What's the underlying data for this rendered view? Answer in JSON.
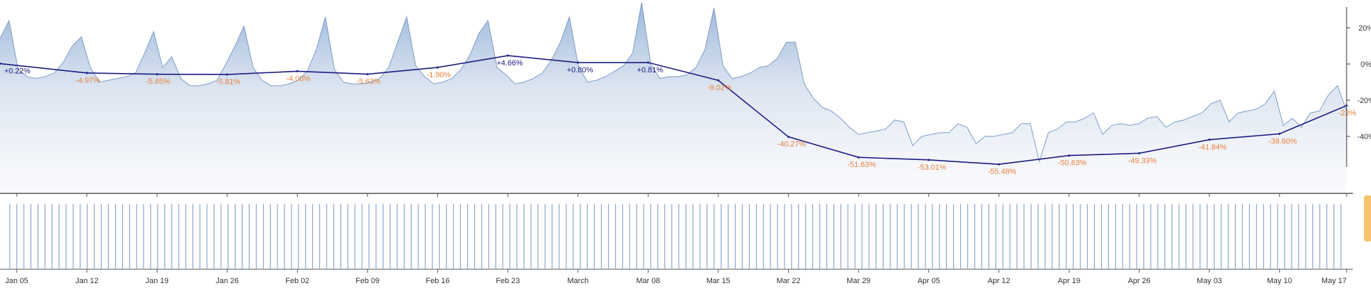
{
  "chart_data": {
    "type": "line",
    "x_tick_labels": [
      "Jan 05",
      "Jan 12",
      "Jan 19",
      "Jan 26",
      "Feb 02",
      "Feb 09",
      "Feb 16",
      "Feb 23",
      "March",
      "Mar 08",
      "Mar 15",
      "Mar 22",
      "Mar 29",
      "Apr 05",
      "Apr 12",
      "Apr 19",
      "Apr 26",
      "May 03",
      "May 10",
      "May 17"
    ],
    "y_tick_labels": [
      "20%",
      "0%",
      "-20%",
      "-40%"
    ],
    "ylim": [
      -56,
      35
    ],
    "weekly_series": {
      "values": [
        0.22,
        -4.97,
        -5.65,
        -5.81,
        -4.0,
        -5.63,
        -1.9,
        4.66,
        0.8,
        0.81,
        -9.02,
        -40.27,
        -51.63,
        -53.01,
        -55.48,
        -50.63,
        -49.33,
        -41.84,
        -38.6,
        -23.0
      ],
      "labels": [
        "+0.22%",
        "-4.97%",
        "-5.65%",
        "-5.81%",
        "-4.00%",
        "-5.63%",
        "-1.90%",
        "+4.66%",
        "+0.80%",
        "+0.81%",
        "-9.02%",
        "-40.27%",
        "-51.63%",
        "-53.01%",
        "-55.48%",
        "-50.63%",
        "-49.33%",
        "-41.84%",
        "-38.60%",
        "-23%"
      ],
      "color": "#1a1a80",
      "positive_label_color": "#1a1a80",
      "negative_label_color": "#e8803a"
    },
    "daily_series": {
      "values": [
        14,
        24,
        -3,
        -7,
        -8,
        -7,
        -5,
        1,
        10,
        15,
        -2,
        -10,
        -9,
        -8,
        -7,
        -5,
        6,
        18,
        -2,
        4,
        -8,
        -12,
        -12,
        -11,
        -9,
        0,
        10,
        21,
        -2,
        -9,
        -12,
        -12,
        -11,
        -9,
        -4,
        8,
        26,
        -3,
        -10,
        -11,
        -11,
        -10,
        -8,
        -2,
        12,
        26,
        -1,
        -7,
        -11,
        -10,
        -8,
        -3,
        5,
        17,
        24,
        -2,
        -6,
        -11,
        -10,
        -8,
        -5,
        2,
        12,
        26,
        -1,
        -10,
        -9,
        -7,
        -4,
        -1,
        6,
        34,
        0,
        -8,
        -7,
        -7,
        -6,
        -2,
        8,
        31,
        -1,
        -8,
        -7,
        -5,
        -2,
        -1,
        3,
        12,
        12,
        -11,
        -19,
        -24,
        -26,
        -30,
        -35,
        -39,
        -38,
        -37,
        -36,
        -31,
        -32,
        -45,
        -40,
        -39,
        -38,
        -38,
        -33,
        -35,
        -44,
        -40,
        -40,
        -39,
        -38,
        -33,
        -33,
        -54,
        -38,
        -36,
        -32,
        -32,
        -30,
        -27,
        -39,
        -34,
        -33,
        -34,
        -33,
        -30,
        -29,
        -35,
        -32,
        -31,
        -29,
        -27,
        -22,
        -20,
        -32,
        -27,
        -26,
        -25,
        -22,
        -15,
        -34,
        -30,
        -35,
        -27,
        -26,
        -17,
        -12,
        -26
      ],
      "line_color": "#7a9cc6",
      "fill_top_color": "#8eadd6"
    },
    "volume_bar_color": "#8aa6c8",
    "grid": false,
    "legend": "none"
  }
}
